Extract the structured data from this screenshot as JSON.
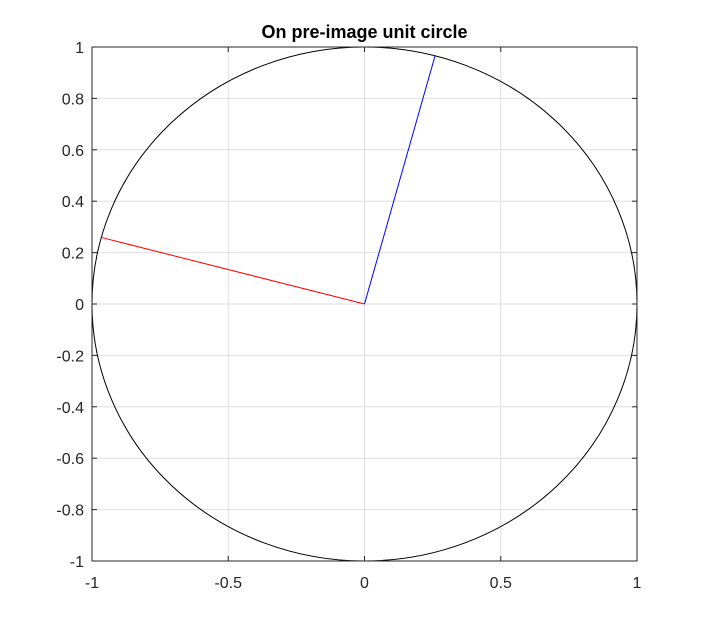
{
  "chart_data": {
    "type": "line",
    "title": "On pre-image unit circle",
    "xlabel": "",
    "ylabel": "",
    "xlim": [
      -1,
      1
    ],
    "ylim": [
      -1,
      1
    ],
    "x_ticks": [
      -1,
      -0.5,
      0,
      0.5,
      1
    ],
    "x_tick_labels": [
      "-1",
      "-0.5",
      "0",
      "0.5",
      "1"
    ],
    "y_ticks": [
      -1,
      -0.8,
      -0.6,
      -0.4,
      -0.2,
      0,
      0.2,
      0.4,
      0.6,
      0.8,
      1
    ],
    "y_tick_labels": [
      "-1",
      "-0.8",
      "-0.6",
      "-0.4",
      "-0.2",
      "0",
      "0.2",
      "0.4",
      "0.6",
      "0.8",
      "1"
    ],
    "grid": true,
    "legend": "none",
    "circle": {
      "center": [
        0,
        0
      ],
      "radius": 1,
      "color": "#000000"
    },
    "series": [
      {
        "color": "#ff0000",
        "x": [
          0,
          -0.966
        ],
        "y": [
          0,
          0.259
        ]
      },
      {
        "color": "#0000ff",
        "x": [
          0,
          0.259
        ],
        "y": [
          0,
          0.966
        ]
      }
    ]
  }
}
